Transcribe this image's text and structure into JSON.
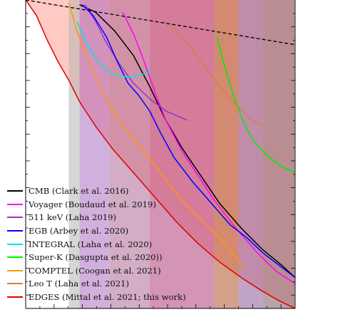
{
  "chart_data": {
    "type": "line",
    "title": "",
    "xlabel": "",
    "ylabel": "",
    "xlim": [
      0,
      1
    ],
    "ylim": [
      0,
      1
    ],
    "grid": false,
    "legend_position": "lower-left",
    "bands": [
      {
        "x_range": [
          0.16,
          0.2
        ],
        "color": "#b5b5b5",
        "opacity": 0.55
      },
      {
        "x_range": [
          0.2,
          0.31
        ],
        "color": "#9b4fb3",
        "opacity": 0.45
      },
      {
        "x_range": [
          0.31,
          0.46
        ],
        "color": "#a85a8c",
        "opacity": 0.5
      },
      {
        "x_range": [
          0.46,
          0.7
        ],
        "color": "#b03c78",
        "opacity": 0.55
      },
      {
        "x_range": [
          0.7,
          0.79
        ],
        "color": "#b8603c",
        "opacity": 0.6
      },
      {
        "x_range": [
          0.79,
          0.88
        ],
        "color": "#8c5a96",
        "opacity": 0.55
      },
      {
        "x_range": [
          0.88,
          1.0
        ],
        "color": "#8a6672",
        "opacity": 0.6
      }
    ],
    "reference_line": {
      "style": "dashed",
      "color": "#000000",
      "points": [
        [
          0.0,
          1.0
        ],
        [
          1.0,
          0.855
        ]
      ]
    },
    "series": [
      {
        "name": "CMB (Clark et al. 2016)",
        "color": "#000000",
        "x": [
          0.2,
          0.26,
          0.33,
          0.4,
          0.46,
          0.52,
          0.58,
          0.65,
          0.72,
          0.8,
          0.88,
          0.95,
          1.0
        ],
        "y": [
          0.985,
          0.96,
          0.9,
          0.82,
          0.72,
          0.61,
          0.52,
          0.43,
          0.34,
          0.26,
          0.19,
          0.14,
          0.1
        ]
      },
      {
        "name": "Voyager (Boudaud et al. 2019)",
        "color": "#ff00ff",
        "x": [
          0.36,
          0.4,
          0.44,
          0.48,
          0.52,
          0.58,
          0.64,
          0.7,
          0.78,
          0.86,
          0.93,
          1.0
        ],
        "y": [
          0.96,
          0.89,
          0.8,
          0.7,
          0.61,
          0.51,
          0.43,
          0.35,
          0.26,
          0.18,
          0.12,
          0.08
        ]
      },
      {
        "name": "511 keV (Laha 2019)",
        "color": "#9932cc",
        "x": [
          0.22,
          0.26,
          0.3,
          0.35,
          0.4,
          0.46,
          0.52,
          0.6
        ],
        "y": [
          0.985,
          0.93,
          0.86,
          0.79,
          0.73,
          0.68,
          0.64,
          0.61
        ]
      },
      {
        "name": "EGB (Arbey et al. 2020)",
        "color": "#0000ff",
        "x": [
          0.21,
          0.25,
          0.3,
          0.34,
          0.38,
          0.42,
          0.46,
          0.5,
          0.55,
          0.62,
          0.7,
          0.76,
          0.82,
          0.88,
          0.94,
          1.0
        ],
        "y": [
          0.985,
          0.95,
          0.88,
          0.8,
          0.73,
          0.69,
          0.64,
          0.57,
          0.49,
          0.41,
          0.33,
          0.27,
          0.23,
          0.18,
          0.14,
          0.1
        ]
      },
      {
        "name": "INTEGRAL (Laha et al. 2020)",
        "color": "#00e5e5",
        "x": [
          0.19,
          0.22,
          0.26,
          0.3,
          0.34,
          0.38,
          0.42,
          0.47
        ],
        "y": [
          0.93,
          0.87,
          0.81,
          0.77,
          0.755,
          0.75,
          0.755,
          0.77
        ]
      },
      {
        "name": "Super-K (Dasgupta et al. 2020))",
        "color": "#00ee00",
        "x": [
          0.71,
          0.73,
          0.76,
          0.8,
          0.84,
          0.89,
          0.95,
          1.0
        ],
        "y": [
          0.88,
          0.81,
          0.72,
          0.62,
          0.55,
          0.5,
          0.46,
          0.44
        ]
      },
      {
        "name": "COMPTEL (Coogan et al. 2021)",
        "color": "#ff9900",
        "x": [
          0.16,
          0.19,
          0.22,
          0.26,
          0.31,
          0.36,
          0.42,
          0.5,
          0.58,
          0.66,
          0.74,
          0.81
        ],
        "y": [
          0.99,
          0.9,
          0.83,
          0.75,
          0.66,
          0.59,
          0.53,
          0.44,
          0.35,
          0.28,
          0.21,
          0.13
        ]
      },
      {
        "name": "Leo T (Laha et al. 2021)",
        "color": "#cd853f",
        "x": [
          0.54,
          0.6,
          0.66,
          0.72,
          0.78,
          0.84,
          0.88
        ],
        "y": [
          0.92,
          0.86,
          0.79,
          0.72,
          0.66,
          0.61,
          0.59
        ]
      },
      {
        "name": "EDGES (Mittal et al. 2021; this work)",
        "color": "#dd0000",
        "x": [
          0.0,
          0.04,
          0.08,
          0.12,
          0.16,
          0.2,
          0.26,
          0.32,
          0.4,
          0.48,
          0.56,
          0.64,
          0.72,
          0.8,
          0.88,
          0.94,
          1.0
        ],
        "y": [
          1.0,
          0.95,
          0.87,
          0.8,
          0.74,
          0.67,
          0.59,
          0.52,
          0.44,
          0.36,
          0.28,
          0.21,
          0.15,
          0.1,
          0.055,
          0.025,
          0.0
        ]
      }
    ]
  }
}
